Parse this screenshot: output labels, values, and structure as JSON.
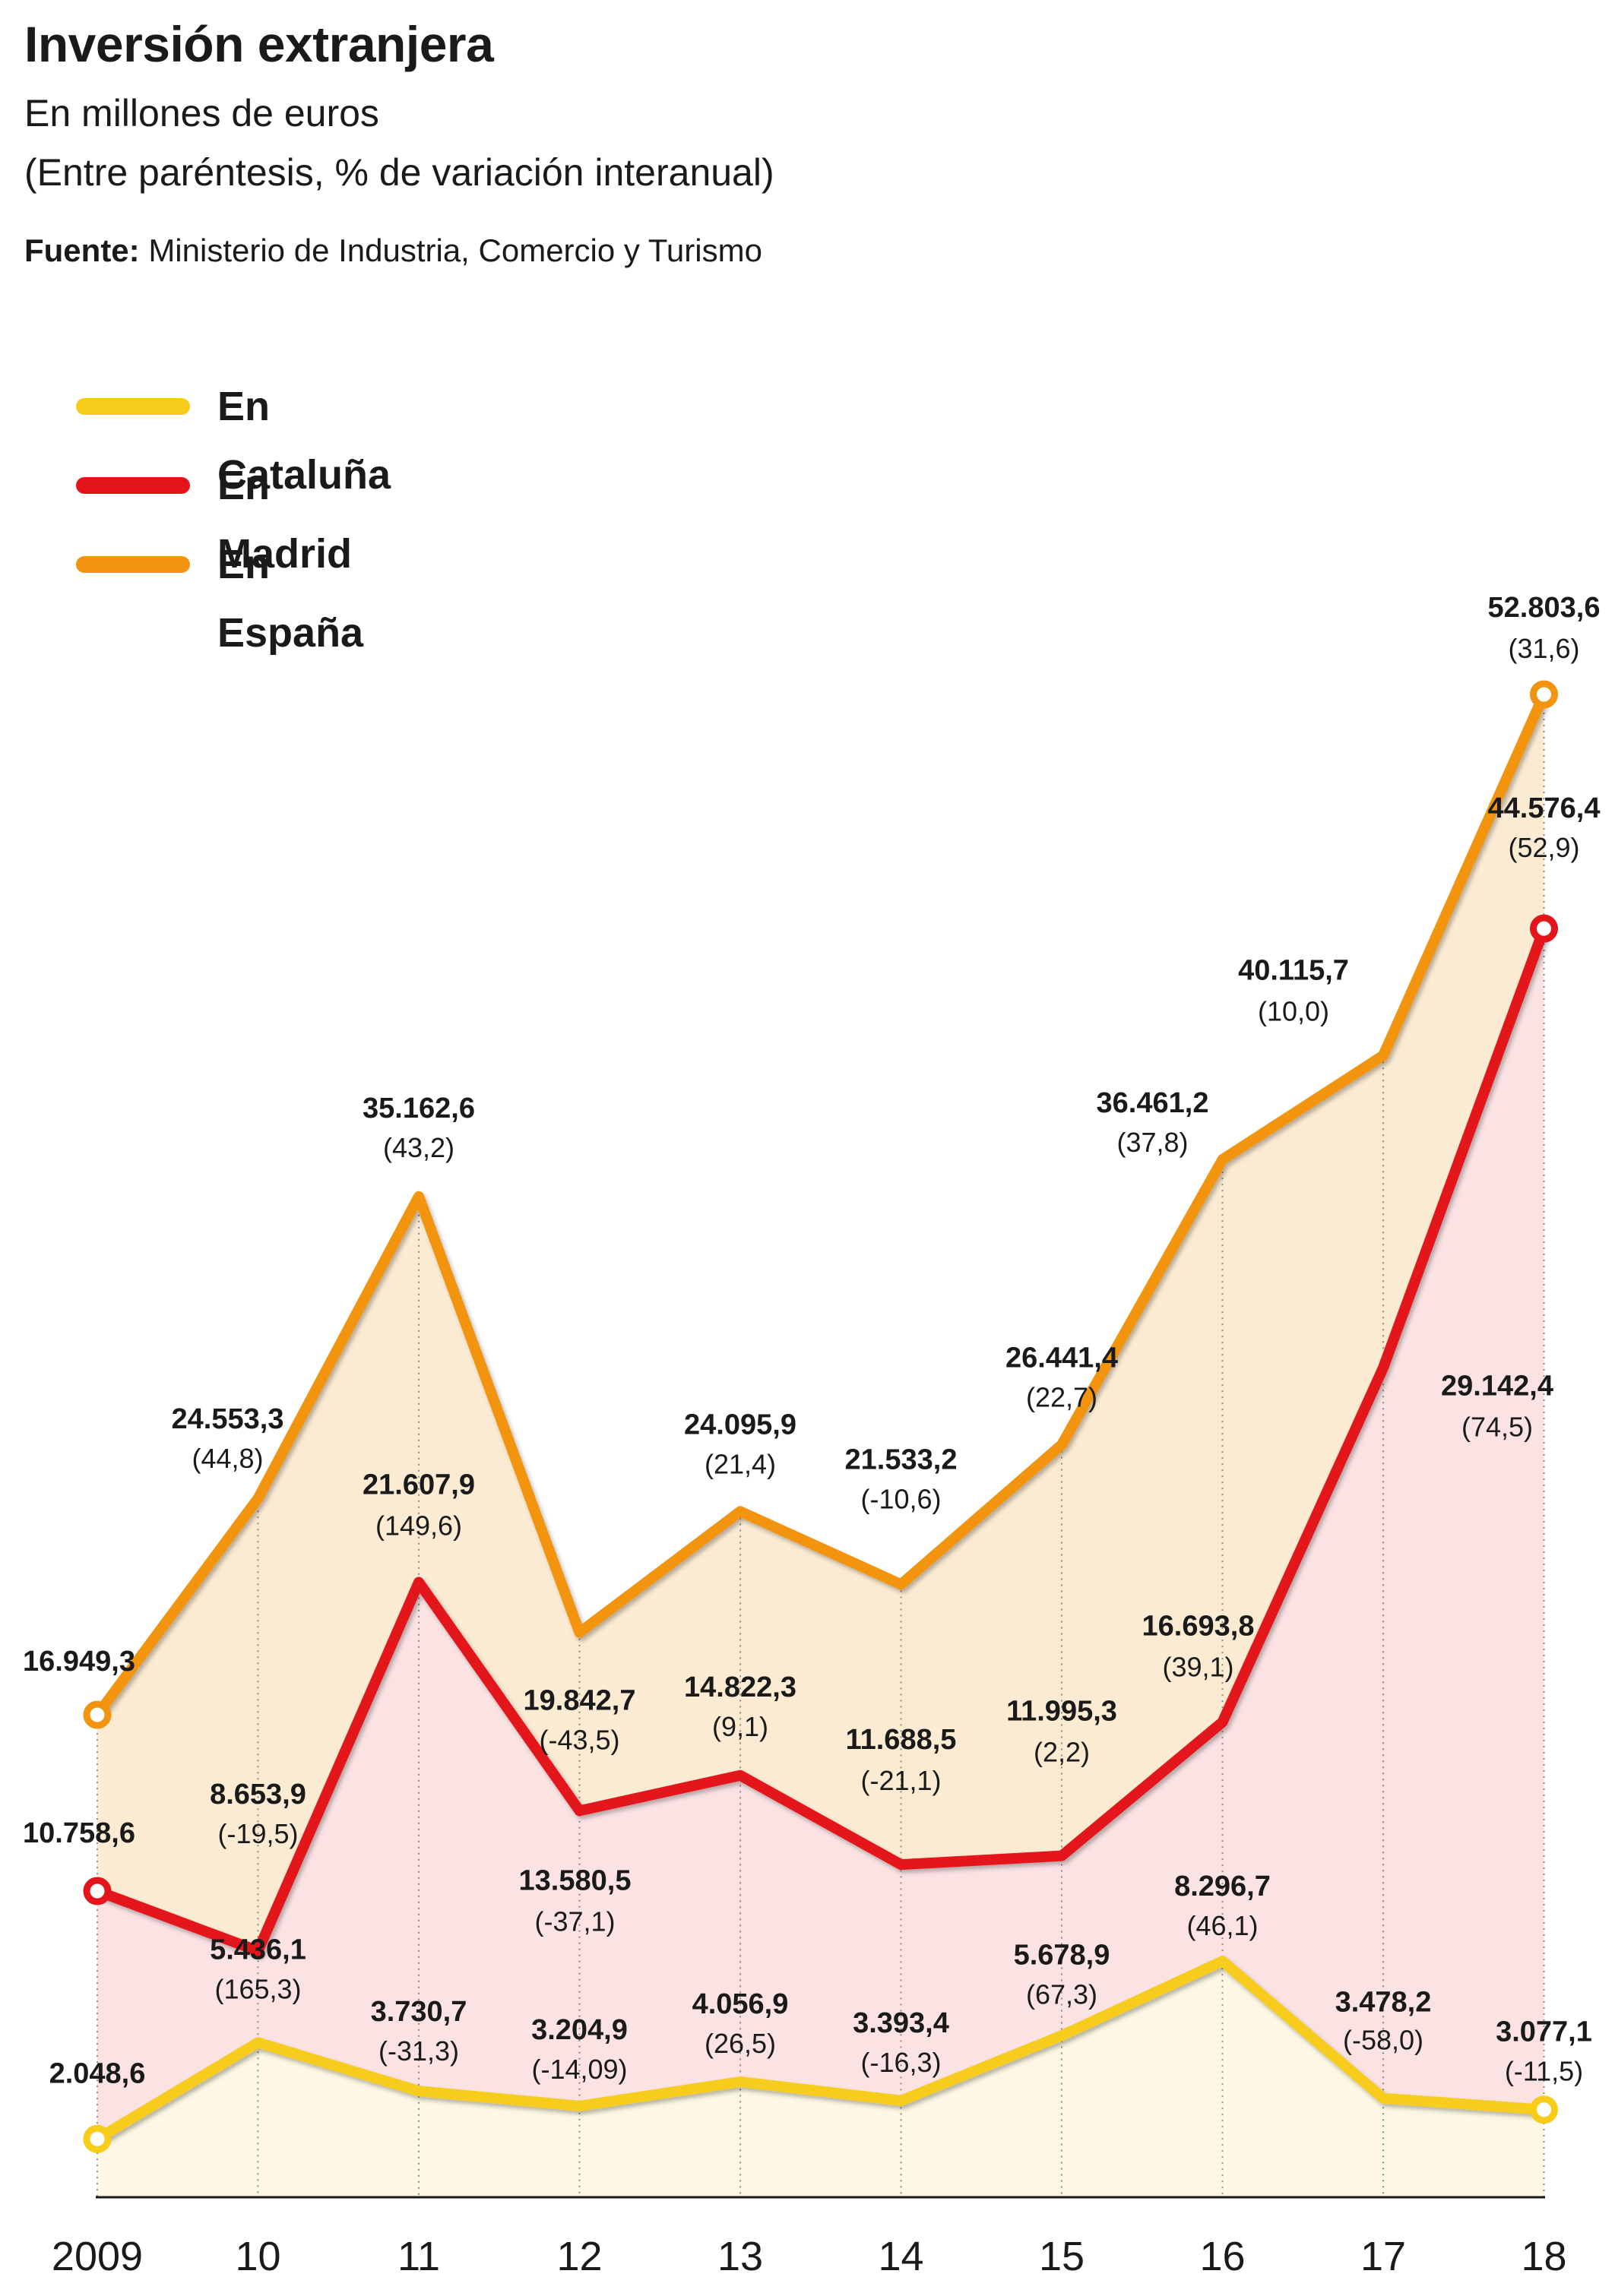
{
  "header": {
    "title": "Inversión extranjera",
    "subtitle": "En millones de euros",
    "note": "(Entre paréntesis, % de variación interanual)",
    "source_label": "Fuente:",
    "source_text": " Ministerio de Industria, Comercio y Turismo"
  },
  "chart_data": {
    "type": "line",
    "title": "Inversión extranjera",
    "subtitle": "En millones de euros",
    "ylabel": "",
    "xlabel": "",
    "categories": [
      "2009",
      "10",
      "11",
      "12",
      "13",
      "14",
      "15",
      "16",
      "17",
      "18"
    ],
    "ylim": [
      0,
      55000
    ],
    "grid": "vertical-dotted",
    "legend_position": "top-left",
    "series": [
      {
        "name": "En Cataluña",
        "color": "#f7cc1b",
        "fill": "#fdf8e4",
        "values": [
          2048.6,
          5436.1,
          3730.7,
          3204.9,
          4056.9,
          3393.4,
          5678.9,
          8296.7,
          3478.2,
          3077.1
        ],
        "labels": [
          "2.048,6",
          "5.436,1",
          "3.730,7",
          "3.204,9",
          "4.056,9",
          "3.393,4",
          "5.678,9",
          "8.296,7",
          "3.478,2",
          "3.077,1"
        ],
        "changes": [
          "",
          "(165,3)",
          "(-31,3)",
          "(-14,09)",
          "(26,5)",
          "(-16,3)",
          "(67,3)",
          "(46,1)",
          "(-58,0)",
          "(-11,5)"
        ]
      },
      {
        "name": "En Madrid",
        "color": "#e3151b",
        "fill": "#fbe3e4",
        "values": [
          10758.6,
          8653.9,
          21607.9,
          13580.5,
          14822.3,
          11688.5,
          11995.3,
          16693.8,
          29142.4,
          44576.4
        ],
        "labels": [
          "10.758,6",
          "8.653,9",
          "21.607,9",
          "13.580,5",
          "14.822,3",
          "11.688,5",
          "11.995,3",
          "16.693,8",
          "29.142,4",
          "44.576,4"
        ],
        "changes": [
          "",
          "(-19,5)",
          "(149,6)",
          "(-37,1)",
          "(9,1)",
          "(-21,1)",
          "(2,2)",
          "(39,1)",
          "(74,5)",
          "(52,9)"
        ]
      },
      {
        "name": "En España",
        "color": "#f29410",
        "fill": "#fcebd3",
        "values": [
          16949.3,
          24553.3,
          35162.6,
          19842.7,
          24095.9,
          21533.2,
          26441.4,
          36461.2,
          40115.7,
          52803.6
        ],
        "labels": [
          "16.949,3",
          "24.553,3",
          "35.162,6",
          "19.842,7",
          "24.095,9",
          "21.533,2",
          "26.441,4",
          "36.461,2",
          "40.115,7",
          "52.803,6"
        ],
        "changes": [
          "",
          "(44,8)",
          "(43,2)",
          "(-43,5)",
          "(21,4)",
          "(-10,6)",
          "(22,7)",
          "(37,8)",
          "(10,0)",
          "(31,6)"
        ]
      }
    ]
  }
}
